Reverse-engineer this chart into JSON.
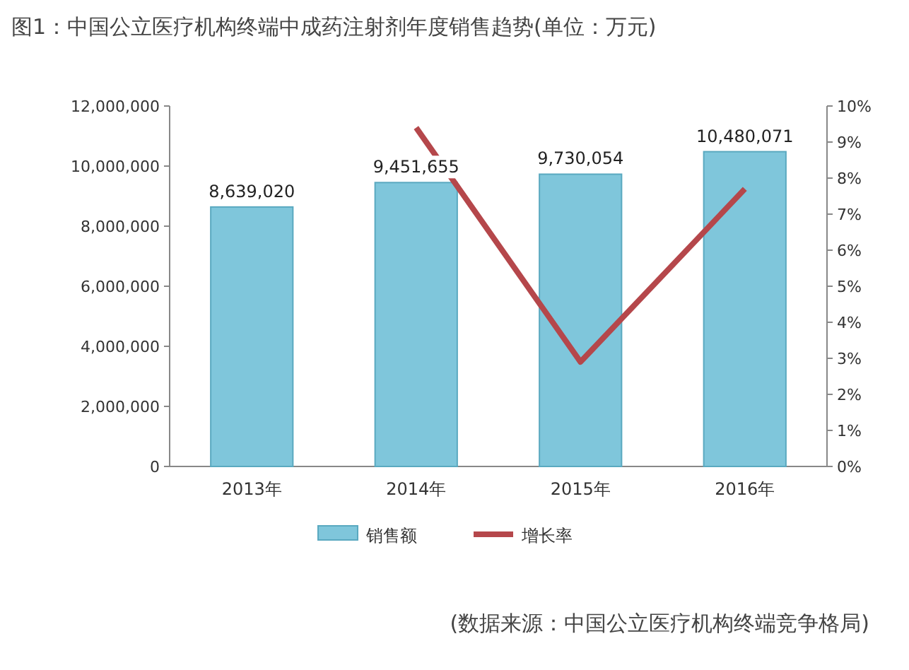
{
  "chart_data": {
    "type": "bar",
    "title": "图1：中国公立医疗机构终端中成药注射剂年度销售趋势(单位：万元)",
    "annotations": [
      "(数据来源：中国公立医疗机构终端竞争格局)"
    ],
    "categories": [
      "2013年",
      "2014年",
      "2015年",
      "2016年"
    ],
    "series": [
      {
        "name": "销售额",
        "color": "#7fc6db",
        "values": [
          8639020,
          9451655,
          9730054,
          10480071
        ],
        "value_labels": [
          "8,639,020",
          "9,451,655",
          "9,730,054",
          "10,480,071"
        ]
      },
      {
        "name": "增长率",
        "type": "line",
        "axis": "y2",
        "color": "#b5474b",
        "values": [
          null,
          9.4,
          2.9,
          7.7
        ]
      }
    ],
    "ylim": [
      0,
      12000000
    ],
    "yticks": [
      0,
      {
        "value": 2000000,
        "label": "2,000,000"
      },
      {
        "value": 4000000,
        "label": "4,000,000"
      },
      {
        "value": 6000000,
        "label": "6,000,000"
      },
      {
        "value": 8000000,
        "label": "8,000,000"
      },
      {
        "value": 10000000,
        "label": "10,000,000"
      },
      {
        "value": 12000000,
        "label": "12,000,000"
      }
    ],
    "y2lim": [
      0,
      10
    ],
    "y2ticks": [
      {
        "value": 0,
        "label": "0%"
      },
      {
        "value": 1,
        "label": "1%"
      },
      {
        "value": 2,
        "label": "2%"
      },
      {
        "value": 3,
        "label": "3%"
      },
      {
        "value": 4,
        "label": "4%"
      },
      {
        "value": 5,
        "label": "5%"
      },
      {
        "value": 6,
        "label": "6%"
      },
      {
        "value": 7,
        "label": "7%"
      },
      {
        "value": 8,
        "label": "8%"
      },
      {
        "value": 9,
        "label": "9%"
      },
      {
        "value": 10,
        "label": "10%"
      }
    ],
    "grid": false,
    "legend": "bottom"
  }
}
